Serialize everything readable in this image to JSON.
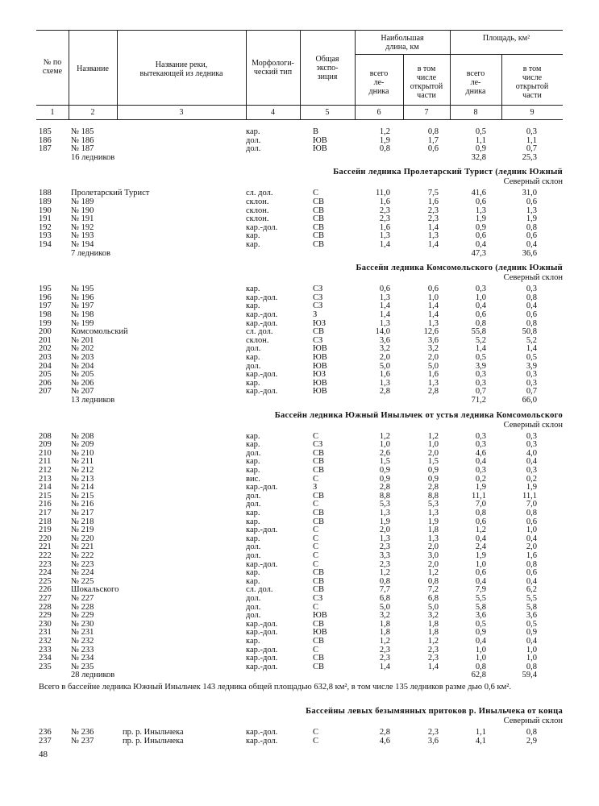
{
  "header": {
    "columns": [
      "№ по\nсхеме",
      "Название",
      "Название реки,\nвытекающей из ледника",
      "Морфологи-\nческий тип",
      "Общая\nэкспо-\nзиция",
      "всего\nле-\nдника",
      "в том\nчисле\nоткрытой\nчасти",
      "всего\nле-\nдника",
      "в том\nчисле\nоткрытой\nчасти"
    ],
    "groups": [
      "Наибольшая\nдлина, км",
      "Площадь, км²"
    ],
    "numbers": [
      "1",
      "2",
      "3",
      "4",
      "5",
      "6",
      "7",
      "8",
      "9"
    ]
  },
  "sections": [
    {
      "rows": [
        [
          "185",
          "№ 185",
          null,
          "кар.",
          "В",
          "1,2",
          "0,8",
          "0,5",
          "0,3"
        ],
        [
          "186",
          "№ 186",
          null,
          "дол.",
          "ЮВ",
          "1,9",
          "1,7",
          "1,1",
          "1,1"
        ],
        [
          "187",
          "№ 187",
          null,
          "дол.",
          "ЮВ",
          "0,8",
          "0,6",
          "0,9",
          "0,7"
        ]
      ],
      "total": [
        "16 ледников",
        "32,8",
        "25,3"
      ]
    },
    {
      "title": "Бассейн ледника Пролетарский Турист (ледник Южный",
      "subtitle": "Северный склон",
      "rows": [
        [
          "188",
          "Пролетарский Турист",
          null,
          "сл. дол.",
          "С",
          "11,0",
          "7,5",
          "41,6",
          "31,0"
        ],
        [
          "189",
          "№ 189",
          null,
          "склон.",
          "СВ",
          "1,6",
          "1,6",
          "0,6",
          "0,6"
        ],
        [
          "190",
          "№ 190",
          null,
          "склон.",
          "СВ",
          "2,3",
          "2,3",
          "1,3",
          "1,3"
        ],
        [
          "191",
          "№ 191",
          null,
          "склон.",
          "СВ",
          "2,3",
          "2,3",
          "1,9",
          "1,9"
        ],
        [
          "192",
          "№ 192",
          null,
          "кар.-дол.",
          "СВ",
          "1,6",
          "1,4",
          "0,9",
          "0,8"
        ],
        [
          "193",
          "№ 193",
          null,
          "кар.",
          "СВ",
          "1,3",
          "1,3",
          "0,6",
          "0,6"
        ],
        [
          "194",
          "№ 194",
          null,
          "кар.",
          "СВ",
          "1,4",
          "1,4",
          "0,4",
          "0,4"
        ]
      ],
      "total": [
        "7 ледников",
        "47,3",
        "36,6"
      ]
    },
    {
      "title": "Бассейн ледника Комсомольского (ледник Южный",
      "subtitle": "Северный склон",
      "rows": [
        [
          "195",
          "№ 195",
          null,
          "кар.",
          "СЗ",
          "0,6",
          "0,6",
          "0,3",
          "0,3"
        ],
        [
          "196",
          "№ 196",
          null,
          "кар.-дол.",
          "СЗ",
          "1,3",
          "1,0",
          "1,0",
          "0,8"
        ],
        [
          "197",
          "№ 197",
          null,
          "кар.",
          "СЗ",
          "1,4",
          "1,4",
          "0,4",
          "0,4"
        ],
        [
          "198",
          "№ 198",
          null,
          "кар.-дол.",
          "З",
          "1,4",
          "1,4",
          "0,6",
          "0,6"
        ],
        [
          "199",
          "№ 199",
          null,
          "кар.-дол.",
          "ЮЗ",
          "1,3",
          "1,3",
          "0,8",
          "0,8"
        ],
        [
          "200",
          "Комсомольский",
          null,
          "сл. дол.",
          "СВ",
          "14,0",
          "12,6",
          "55,8",
          "50,8"
        ],
        [
          "201",
          "№ 201",
          null,
          "склон.",
          "СЗ",
          "3,6",
          "3,6",
          "5,2",
          "5,2"
        ],
        [
          "202",
          "№ 202",
          null,
          "дол.",
          "ЮВ",
          "3,2",
          "3,2",
          "1,4",
          "1,4"
        ],
        [
          "203",
          "№ 203",
          null,
          "кар.",
          "ЮВ",
          "2,0",
          "2,0",
          "0,5",
          "0,5"
        ],
        [
          "204",
          "№ 204",
          null,
          "дол.",
          "ЮВ",
          "5,0",
          "5,0",
          "3,9",
          "3,9"
        ],
        [
          "205",
          "№ 205",
          null,
          "кар.-дол.",
          "ЮЗ",
          "1,6",
          "1,6",
          "0,3",
          "0,3"
        ],
        [
          "206",
          "№ 206",
          null,
          "кар.",
          "ЮВ",
          "1,3",
          "1,3",
          "0,3",
          "0,3"
        ],
        [
          "207",
          "№ 207",
          null,
          "кар.-дол.",
          "ЮВ",
          "2,8",
          "2,8",
          "0,7",
          "0,7"
        ]
      ],
      "total": [
        "13 ледников",
        "71,2",
        "66,0"
      ]
    },
    {
      "title": "Бассейн ледника Южный Иныльчек от устья ледника Комсомольского",
      "subtitle": "Северный склон",
      "rows": [
        [
          "208",
          "№ 208",
          null,
          "кар.",
          "С",
          "1,2",
          "1,2",
          "0,3",
          "0,3"
        ],
        [
          "209",
          "№ 209",
          null,
          "кар.",
          "СЗ",
          "1,0",
          "1,0",
          "0,3",
          "0,3"
        ],
        [
          "210",
          "№ 210",
          null,
          "дол.",
          "СВ",
          "2,6",
          "2,0",
          "4,6",
          "4,0"
        ],
        [
          "211",
          "№ 211",
          null,
          "кар.",
          "СВ",
          "1,5",
          "1,5",
          "0,4",
          "0,4"
        ],
        [
          "212",
          "№ 212",
          null,
          "кар.",
          "СВ",
          "0,9",
          "0,9",
          "0,3",
          "0,3"
        ],
        [
          "213",
          "№ 213",
          null,
          "вис.",
          "С",
          "0,9",
          "0,9",
          "0,2",
          "0,2"
        ],
        [
          "214",
          "№ 214",
          null,
          "кар.-дол.",
          "З",
          "2,8",
          "2,8",
          "1,9",
          "1,9"
        ],
        [
          "215",
          "№ 215",
          null,
          "дол.",
          "СВ",
          "8,8",
          "8,8",
          "11,1",
          "11,1"
        ],
        [
          "216",
          "№ 216",
          null,
          "дол.",
          "С",
          "5,3",
          "5,3",
          "7,0",
          "7,0"
        ],
        [
          "217",
          "№ 217",
          null,
          "кар.",
          "СВ",
          "1,3",
          "1,3",
          "0,8",
          "0,8"
        ],
        [
          "218",
          "№ 218",
          null,
          "кар.",
          "СВ",
          "1,9",
          "1,9",
          "0,6",
          "0,6"
        ],
        [
          "219",
          "№ 219",
          null,
          "кар.-дол.",
          "С",
          "2,0",
          "1,8",
          "1,2",
          "1,0"
        ],
        [
          "220",
          "№ 220",
          null,
          "кар.",
          "С",
          "1,3",
          "1,3",
          "0,4",
          "0,4"
        ],
        [
          "221",
          "№ 221",
          null,
          "дол.",
          "С",
          "2,3",
          "2,0",
          "2,4",
          "2,0"
        ],
        [
          "222",
          "№ 222",
          null,
          "дол.",
          "С",
          "3,3",
          "3,0",
          "1,9",
          "1,6"
        ],
        [
          "223",
          "№ 223",
          null,
          "кар.-дол.",
          "С",
          "2,3",
          "2,0",
          "1,0",
          "0,8"
        ],
        [
          "224",
          "№ 224",
          null,
          "кар.",
          "СВ",
          "1,2",
          "1,2",
          "0,6",
          "0,6"
        ],
        [
          "225",
          "№ 225",
          null,
          "кар.",
          "СВ",
          "0,8",
          "0,8",
          "0,4",
          "0,4"
        ],
        [
          "226",
          "Шокальского",
          null,
          "сл. дол.",
          "СВ",
          "7,7",
          "7,2",
          "7,9",
          "6,2"
        ],
        [
          "227",
          "№ 227",
          null,
          "дол.",
          "СЗ",
          "6,8",
          "6,8",
          "5,5",
          "5,5"
        ],
        [
          "228",
          "№ 228",
          null,
          "дол.",
          "С",
          "5,0",
          "5,0",
          "5,8",
          "5,8"
        ],
        [
          "229",
          "№ 229",
          null,
          "дол.",
          "ЮВ",
          "3,2",
          "3,2",
          "3,6",
          "3,6"
        ],
        [
          "230",
          "№ 230",
          null,
          "кар.-дол.",
          "СВ",
          "1,8",
          "1,8",
          "0,5",
          "0,5"
        ],
        [
          "231",
          "№ 231",
          null,
          "кар.-дол.",
          "ЮВ",
          "1,8",
          "1,8",
          "0,9",
          "0,9"
        ],
        [
          "232",
          "№ 232",
          null,
          "кар.",
          "СВ",
          "1,2",
          "1,2",
          "0,4",
          "0,4"
        ],
        [
          "233",
          "№ 233",
          null,
          "кар.-дол.",
          "С",
          "2,3",
          "2,3",
          "1,0",
          "1,0"
        ],
        [
          "234",
          "№ 234",
          null,
          "кар.-дол.",
          "СВ",
          "2,3",
          "2,3",
          "1,0",
          "1,0"
        ],
        [
          "235",
          "№ 235",
          null,
          "кар.-дол.",
          "СВ",
          "1,4",
          "1,4",
          "0,8",
          "0,8"
        ]
      ],
      "total": [
        "28 ледников",
        "62,8",
        "59,4"
      ],
      "note": "Всего в бассейне ледника Южный Иныльчек 143 ледника общей площадью 632,8 км², в том числе 135 ледников разме дью 0,6 км²."
    },
    {
      "title": "Бассейны левых безымянных притоков р. Иныльчека от конца",
      "subtitle": "Северный склон",
      "rows": [
        [
          "236",
          "№ 236",
          "пр. р. Иныльчека",
          "кар.-дол.",
          "С",
          "2,8",
          "2,3",
          "1,1",
          "0,8"
        ],
        [
          "237",
          "№ 237",
          "пр. р. Иныльчека",
          "кар.-дол.",
          "С",
          "4,6",
          "3,6",
          "4,1",
          "2,9"
        ]
      ]
    }
  ],
  "page_number": "48"
}
